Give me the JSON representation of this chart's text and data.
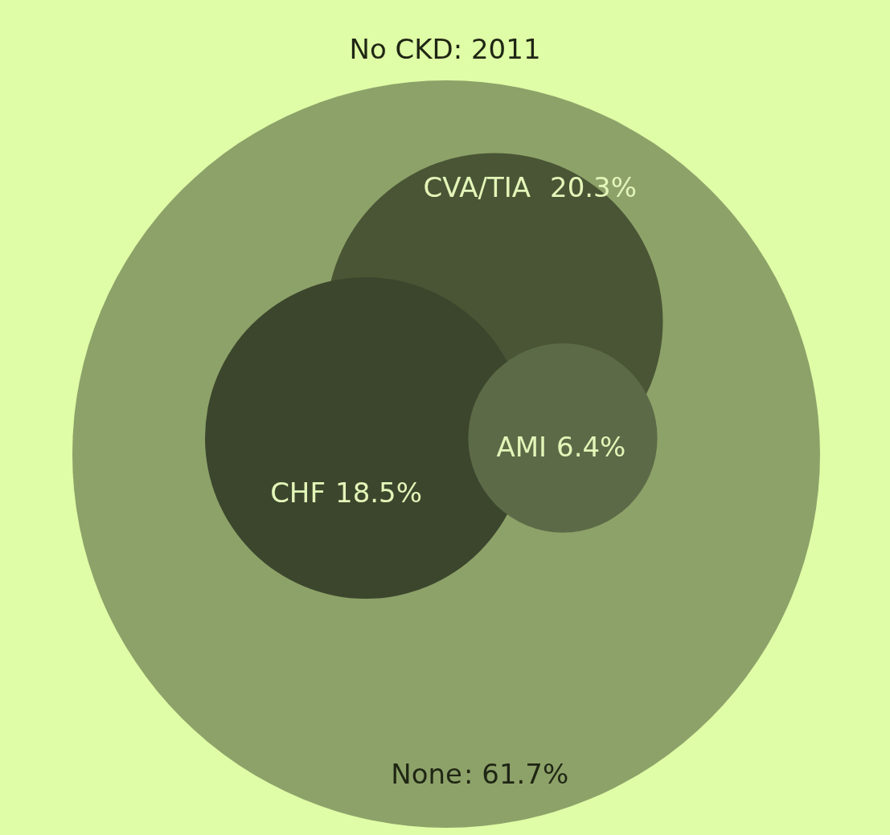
{
  "chart_data": {
    "type": "other",
    "title": "No CKD: 2011",
    "categories": [
      "None",
      "CVA/TIA",
      "CHF",
      "AMI"
    ],
    "values": [
      61.7,
      20.3,
      18.5,
      6.4
    ],
    "value_labels": [
      ": 61.7%",
      "20.3%",
      "18.5%",
      "6.4%"
    ],
    "colors": [
      "#8da269",
      "#4a5535",
      "#3c462d",
      "#5d6a47"
    ]
  }
}
